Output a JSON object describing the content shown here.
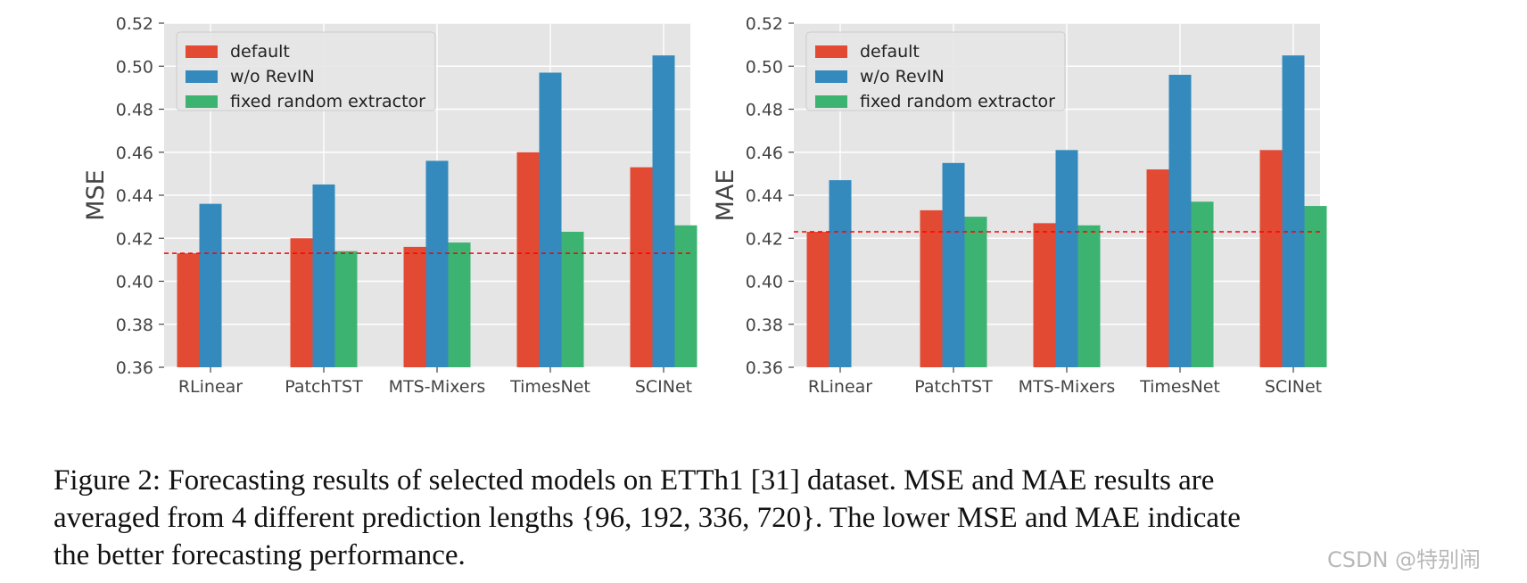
{
  "chart_data": [
    {
      "type": "bar",
      "categories": [
        "RLinear",
        "PatchTST",
        "MTS-Mixers",
        "TimesNet",
        "SCINet"
      ],
      "series": [
        {
          "name": "default",
          "values": [
            0.413,
            0.42,
            0.416,
            0.46,
            0.453
          ]
        },
        {
          "name": "w/o RevIN",
          "values": [
            0.436,
            0.445,
            0.456,
            0.497,
            0.505
          ]
        },
        {
          "name": "fixed random extractor",
          "values": [
            null,
            0.414,
            0.418,
            0.423,
            0.426
          ]
        }
      ],
      "ylabel": "MSE",
      "xlabel": "",
      "ylim": [
        0.36,
        0.52
      ],
      "yticks": [
        "0.36",
        "0.38",
        "0.40",
        "0.42",
        "0.44",
        "0.46",
        "0.48",
        "0.50",
        "0.52"
      ],
      "reference_line": 0.413,
      "legend_position": "top-left",
      "grid": true
    },
    {
      "type": "bar",
      "categories": [
        "RLinear",
        "PatchTST",
        "MTS-Mixers",
        "TimesNet",
        "SCINet"
      ],
      "series": [
        {
          "name": "default",
          "values": [
            0.423,
            0.433,
            0.427,
            0.452,
            0.461
          ]
        },
        {
          "name": "w/o RevIN",
          "values": [
            0.447,
            0.455,
            0.461,
            0.496,
            0.505
          ]
        },
        {
          "name": "fixed random extractor",
          "values": [
            null,
            0.43,
            0.426,
            0.437,
            0.435
          ]
        }
      ],
      "ylabel": "MAE",
      "xlabel": "",
      "ylim": [
        0.36,
        0.52
      ],
      "yticks": [
        "0.36",
        "0.38",
        "0.40",
        "0.42",
        "0.44",
        "0.46",
        "0.48",
        "0.50",
        "0.52"
      ],
      "reference_line": 0.423,
      "legend_position": "top-left",
      "grid": true
    }
  ],
  "colors": {
    "default": "#e24a33",
    "w/o RevIN": "#348abd",
    "fixed random extractor": "#3cb371",
    "panel_bg": "#e5e5e5",
    "grid": "#ffffff",
    "reference_line": "#ff0000"
  },
  "caption": {
    "line1": "Figure 2: Forecasting results of selected models on ETTh1 [31] dataset. MSE and MAE results are",
    "line2": "averaged from 4 different prediction lengths {96, 192, 336, 720}. The lower MSE and MAE indicate",
    "line3": "the better forecasting performance."
  },
  "watermark": "CSDN @特别闹"
}
